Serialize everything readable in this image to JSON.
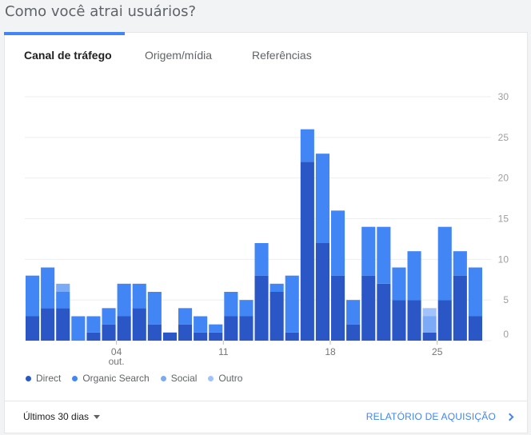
{
  "page": {
    "title": "Como você atrai usuários?"
  },
  "tabs": [
    {
      "label": "Canal de tráfego",
      "active": true
    },
    {
      "label": "Origem/mídia",
      "active": false
    },
    {
      "label": "Referências",
      "active": false
    }
  ],
  "legend": [
    {
      "name": "Direct",
      "color": "#2a56c6"
    },
    {
      "name": "Organic Search",
      "color": "#4285f4"
    },
    {
      "name": "Social",
      "color": "#7baaf7"
    },
    {
      "name": "Outro",
      "color": "#a1c2fa"
    }
  ],
  "footer": {
    "range_label": "Últimos 30 dias",
    "report_label": "RELATÓRIO DE AQUISIÇÃO"
  },
  "chart_data": {
    "type": "bar",
    "stacked": true,
    "title": "",
    "xlabel": "",
    "ylabel": "",
    "ylim": [
      0,
      30
    ],
    "yticks": [
      0,
      5,
      10,
      15,
      20,
      25,
      30
    ],
    "x_tick_labels": [
      {
        "index": 6,
        "label": "04",
        "sublabel": "out."
      },
      {
        "index": 13,
        "label": "11",
        "sublabel": ""
      },
      {
        "index": 20,
        "label": "18",
        "sublabel": ""
      },
      {
        "index": 27,
        "label": "25",
        "sublabel": ""
      }
    ],
    "categories": [
      1,
      2,
      3,
      4,
      5,
      6,
      7,
      8,
      9,
      10,
      11,
      12,
      13,
      14,
      15,
      16,
      17,
      18,
      19,
      20,
      21,
      22,
      23,
      24,
      25,
      26,
      27,
      28,
      29,
      30
    ],
    "series": [
      {
        "name": "Direct",
        "values": [
          3,
          4,
          4,
          0,
          1,
          2,
          3,
          4,
          2,
          1,
          2,
          1,
          1,
          3,
          3,
          8,
          6,
          1,
          22,
          12,
          8,
          2,
          8,
          7,
          5,
          5,
          1,
          5,
          8,
          3
        ]
      },
      {
        "name": "Organic Search",
        "values": [
          5,
          5,
          2,
          3,
          2,
          2,
          4,
          3,
          4,
          0,
          2,
          2,
          1,
          3,
          2,
          4,
          1,
          7,
          4,
          11,
          8,
          3,
          6,
          7,
          4,
          6,
          0,
          9,
          3,
          6
        ]
      },
      {
        "name": "Social",
        "values": [
          0,
          0,
          1,
          0,
          0,
          0,
          0,
          0,
          0,
          0,
          0,
          0,
          0,
          0,
          0,
          0,
          0,
          0,
          0,
          0,
          0,
          0,
          0,
          0,
          0,
          0,
          2,
          0,
          0,
          0
        ]
      },
      {
        "name": "Outro",
        "values": [
          0,
          0,
          0,
          0,
          0,
          0,
          0,
          0,
          0,
          0,
          0,
          0,
          0,
          0,
          0,
          0,
          0,
          0,
          0,
          0,
          0,
          0,
          0,
          0,
          0,
          0,
          1,
          0,
          0,
          0
        ]
      }
    ],
    "grid": true,
    "legend_position": "bottom-left"
  }
}
